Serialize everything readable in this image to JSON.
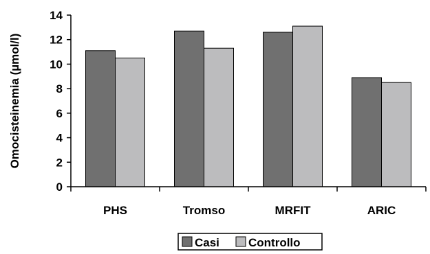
{
  "chart_data": {
    "type": "bar",
    "title": "",
    "xlabel": "",
    "ylabel": "Omocisteinemia (µmol/l)",
    "categories": [
      "PHS",
      "Tromso",
      "MRFIT",
      "ARIC"
    ],
    "series": [
      {
        "name": "Casi",
        "values": [
          11.1,
          12.7,
          12.6,
          8.9
        ],
        "color": "#707070"
      },
      {
        "name": "Controllo",
        "values": [
          10.5,
          11.3,
          13.1,
          8.5
        ],
        "color": "#bcbcbe"
      }
    ],
    "ylim": [
      0,
      14
    ],
    "yticks": [
      0,
      2,
      4,
      6,
      8,
      10,
      12,
      14
    ],
    "grid": false,
    "legend": "bottom"
  }
}
